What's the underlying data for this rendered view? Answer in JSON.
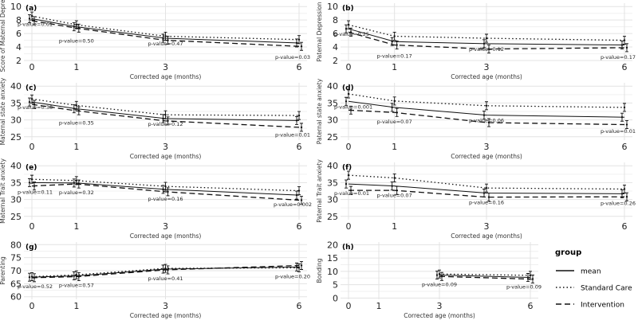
{
  "legend": {
    "title": "group",
    "entries": [
      {
        "name": "mean",
        "dash": "solid"
      },
      {
        "name": "Standard Care",
        "dash": "dotted"
      },
      {
        "name": "Intervention",
        "dash": "dashed"
      }
    ]
  },
  "chart_data": [
    {
      "tag": "(a)",
      "type": "line",
      "ylabel": "Score of Maternal Depressi",
      "xlabel": "Corrected age (months)",
      "x": [
        0,
        1,
        3,
        6
      ],
      "yticks": [
        2,
        4,
        6,
        8,
        10
      ],
      "ylim": [
        2,
        10.5
      ],
      "series": [
        {
          "name": "mean",
          "values": [
            8.2,
            7.0,
            5.3,
            4.6
          ]
        },
        {
          "name": "Standard Care",
          "values": [
            8.6,
            7.3,
            5.6,
            5.1
          ]
        },
        {
          "name": "Intervention",
          "values": [
            7.9,
            6.8,
            5.0,
            4.1
          ]
        }
      ],
      "annotations": [
        {
          "x": 0,
          "label": "p-value=0.61"
        },
        {
          "x": 1,
          "label": "p-value=0.50"
        },
        {
          "x": 3,
          "label": "p-value=0.47"
        },
        {
          "x": 6,
          "label": "p-value=0.03"
        }
      ]
    },
    {
      "tag": "(b)",
      "type": "line",
      "ylabel": "Paternal Depression",
      "xlabel": "Corrected age (months)",
      "x": [
        0,
        1,
        3,
        6
      ],
      "yticks": [
        2,
        4,
        6,
        8,
        10
      ],
      "ylim": [
        2,
        10.5
      ],
      "series": [
        {
          "name": "mean",
          "values": [
            6.7,
            4.8,
            4.5,
            4.3
          ]
        },
        {
          "name": "Standard Care",
          "values": [
            7.3,
            5.6,
            5.3,
            5.0
          ]
        },
        {
          "name": "Intervention",
          "values": [
            6.2,
            4.3,
            3.7,
            3.9
          ]
        }
      ],
      "annotations": [
        {
          "x": 0,
          "label": "p-value=0.25"
        },
        {
          "x": 1,
          "label": "p-value=0.17"
        },
        {
          "x": 3,
          "label": "p-value=0.12"
        },
        {
          "x": 6,
          "label": "p-value=0.17"
        }
      ]
    },
    {
      "tag": "(c)",
      "type": "line",
      "ylabel": "Maternal state anxiety",
      "xlabel": "Corrected age (months)",
      "x": [
        0,
        1,
        3,
        6
      ],
      "yticks": [
        25,
        30,
        35,
        40
      ],
      "ylim": [
        24,
        41
      ],
      "series": [
        {
          "name": "mean",
          "values": [
            35.3,
            33.3,
            30.4,
            29.8
          ]
        },
        {
          "name": "Standard Care",
          "values": [
            36.2,
            34.3,
            31.5,
            31.3
          ]
        },
        {
          "name": "Intervention",
          "values": [
            34.6,
            32.7,
            29.7,
            27.8
          ]
        }
      ],
      "annotations": [
        {
          "x": 0,
          "label": "p-value=0.38"
        },
        {
          "x": 1,
          "label": "p-value=0.35"
        },
        {
          "x": 3,
          "label": "p-value=0.12"
        },
        {
          "x": 6,
          "label": "p-value=0.01"
        }
      ]
    },
    {
      "tag": "(d)",
      "type": "line",
      "ylabel": "Paternal state anxiety",
      "xlabel": "Corrected age (months)",
      "x": [
        0,
        1,
        3,
        6
      ],
      "yticks": [
        25,
        30,
        35,
        40
      ],
      "ylim": [
        24,
        41
      ],
      "series": [
        {
          "name": "mean",
          "values": [
            35.5,
            33.7,
            31.4,
            30.8
          ]
        },
        {
          "name": "Standard Care",
          "values": [
            37.7,
            35.6,
            34.2,
            33.7
          ]
        },
        {
          "name": "Intervention",
          "values": [
            32.9,
            32.2,
            29.2,
            28.6
          ]
        }
      ],
      "annotations": [
        {
          "x": 0,
          "label": "p-value=0.001"
        },
        {
          "x": 1,
          "label": "p-value=0.07"
        },
        {
          "x": 3,
          "label": "p-value=0.06"
        },
        {
          "x": 6,
          "label": "p-value=0.01"
        }
      ]
    },
    {
      "tag": "(e)",
      "type": "line",
      "ylabel": "Maternal Trait anxiety",
      "xlabel": "Corrected age (months)",
      "x": [
        0,
        1,
        3,
        6
      ],
      "yticks": [
        25,
        30,
        35,
        40
      ],
      "ylim": [
        24,
        41
      ],
      "series": [
        {
          "name": "mean",
          "values": [
            35.0,
            34.9,
            33.0,
            31.3
          ]
        },
        {
          "name": "Standard Care",
          "values": [
            36.0,
            35.6,
            33.9,
            32.6
          ]
        },
        {
          "name": "Intervention",
          "values": [
            34.0,
            34.6,
            32.3,
            29.8
          ]
        }
      ],
      "annotations": [
        {
          "x": 0,
          "label": "p-value=0.11"
        },
        {
          "x": 1,
          "label": "p-value=0.32"
        },
        {
          "x": 3,
          "label": "p-value=0.16"
        },
        {
          "x": 6,
          "label": "p-value=0.002"
        }
      ]
    },
    {
      "tag": "(f)",
      "type": "line",
      "ylabel": "Paternal Trait anxiety",
      "xlabel": "Corrected age (months)",
      "x": [
        0,
        1,
        3,
        6
      ],
      "yticks": [
        25,
        30,
        35,
        40
      ],
      "ylim": [
        24,
        41
      ],
      "series": [
        {
          "name": "mean",
          "values": [
            34.6,
            34.0,
            31.9,
            31.7
          ]
        },
        {
          "name": "Standard Care",
          "values": [
            37.2,
            36.4,
            33.4,
            33.1
          ]
        },
        {
          "name": "Intervention",
          "values": [
            32.7,
            32.7,
            30.7,
            30.8
          ]
        }
      ],
      "annotations": [
        {
          "x": 0,
          "label": "p-value=0.01"
        },
        {
          "x": 1,
          "label": "p-value=0.07"
        },
        {
          "x": 3,
          "label": "p-value=0.16"
        },
        {
          "x": 6,
          "label": "p-value=0.26"
        }
      ]
    },
    {
      "tag": "(g)",
      "type": "line",
      "ylabel": "Parenting",
      "xlabel": "Corrected age (months)",
      "x": [
        0,
        1,
        3,
        6
      ],
      "yticks": [
        60,
        65,
        70,
        75,
        80
      ],
      "ylim": [
        59,
        81
      ],
      "series": [
        {
          "name": "mean",
          "values": [
            67.5,
            68.0,
            70.6,
            71.4
          ]
        },
        {
          "name": "Standard Care",
          "values": [
            67.7,
            68.4,
            70.9,
            71.1
          ]
        },
        {
          "name": "Intervention",
          "values": [
            67.3,
            67.7,
            70.3,
            72.0
          ]
        }
      ],
      "annotations": [
        {
          "x": 0,
          "label": "p-value=0.52"
        },
        {
          "x": 1,
          "label": "p-value=0.57"
        },
        {
          "x": 3,
          "label": "p-value=0.41"
        },
        {
          "x": 6,
          "label": "p-value=0.20"
        }
      ]
    },
    {
      "tag": "(h)",
      "type": "line",
      "ylabel": "Bonding",
      "xlabel": "Corrected age (months)",
      "x": [
        0,
        1,
        3,
        6
      ],
      "yticks": [
        0,
        5,
        10,
        15,
        20
      ],
      "ylim": [
        -0.5,
        21
      ],
      "series": [
        {
          "name": "mean",
          "values": [
            null,
            null,
            8.6,
            7.7
          ]
        },
        {
          "name": "Standard Care",
          "values": [
            null,
            null,
            9.0,
            8.5
          ]
        },
        {
          "name": "Intervention",
          "values": [
            null,
            null,
            8.1,
            7.1
          ]
        }
      ],
      "annotations": [
        {
          "x": 3,
          "label": "p-value=0.09"
        },
        {
          "x": 6,
          "label": "p-value=0.09"
        }
      ]
    }
  ]
}
